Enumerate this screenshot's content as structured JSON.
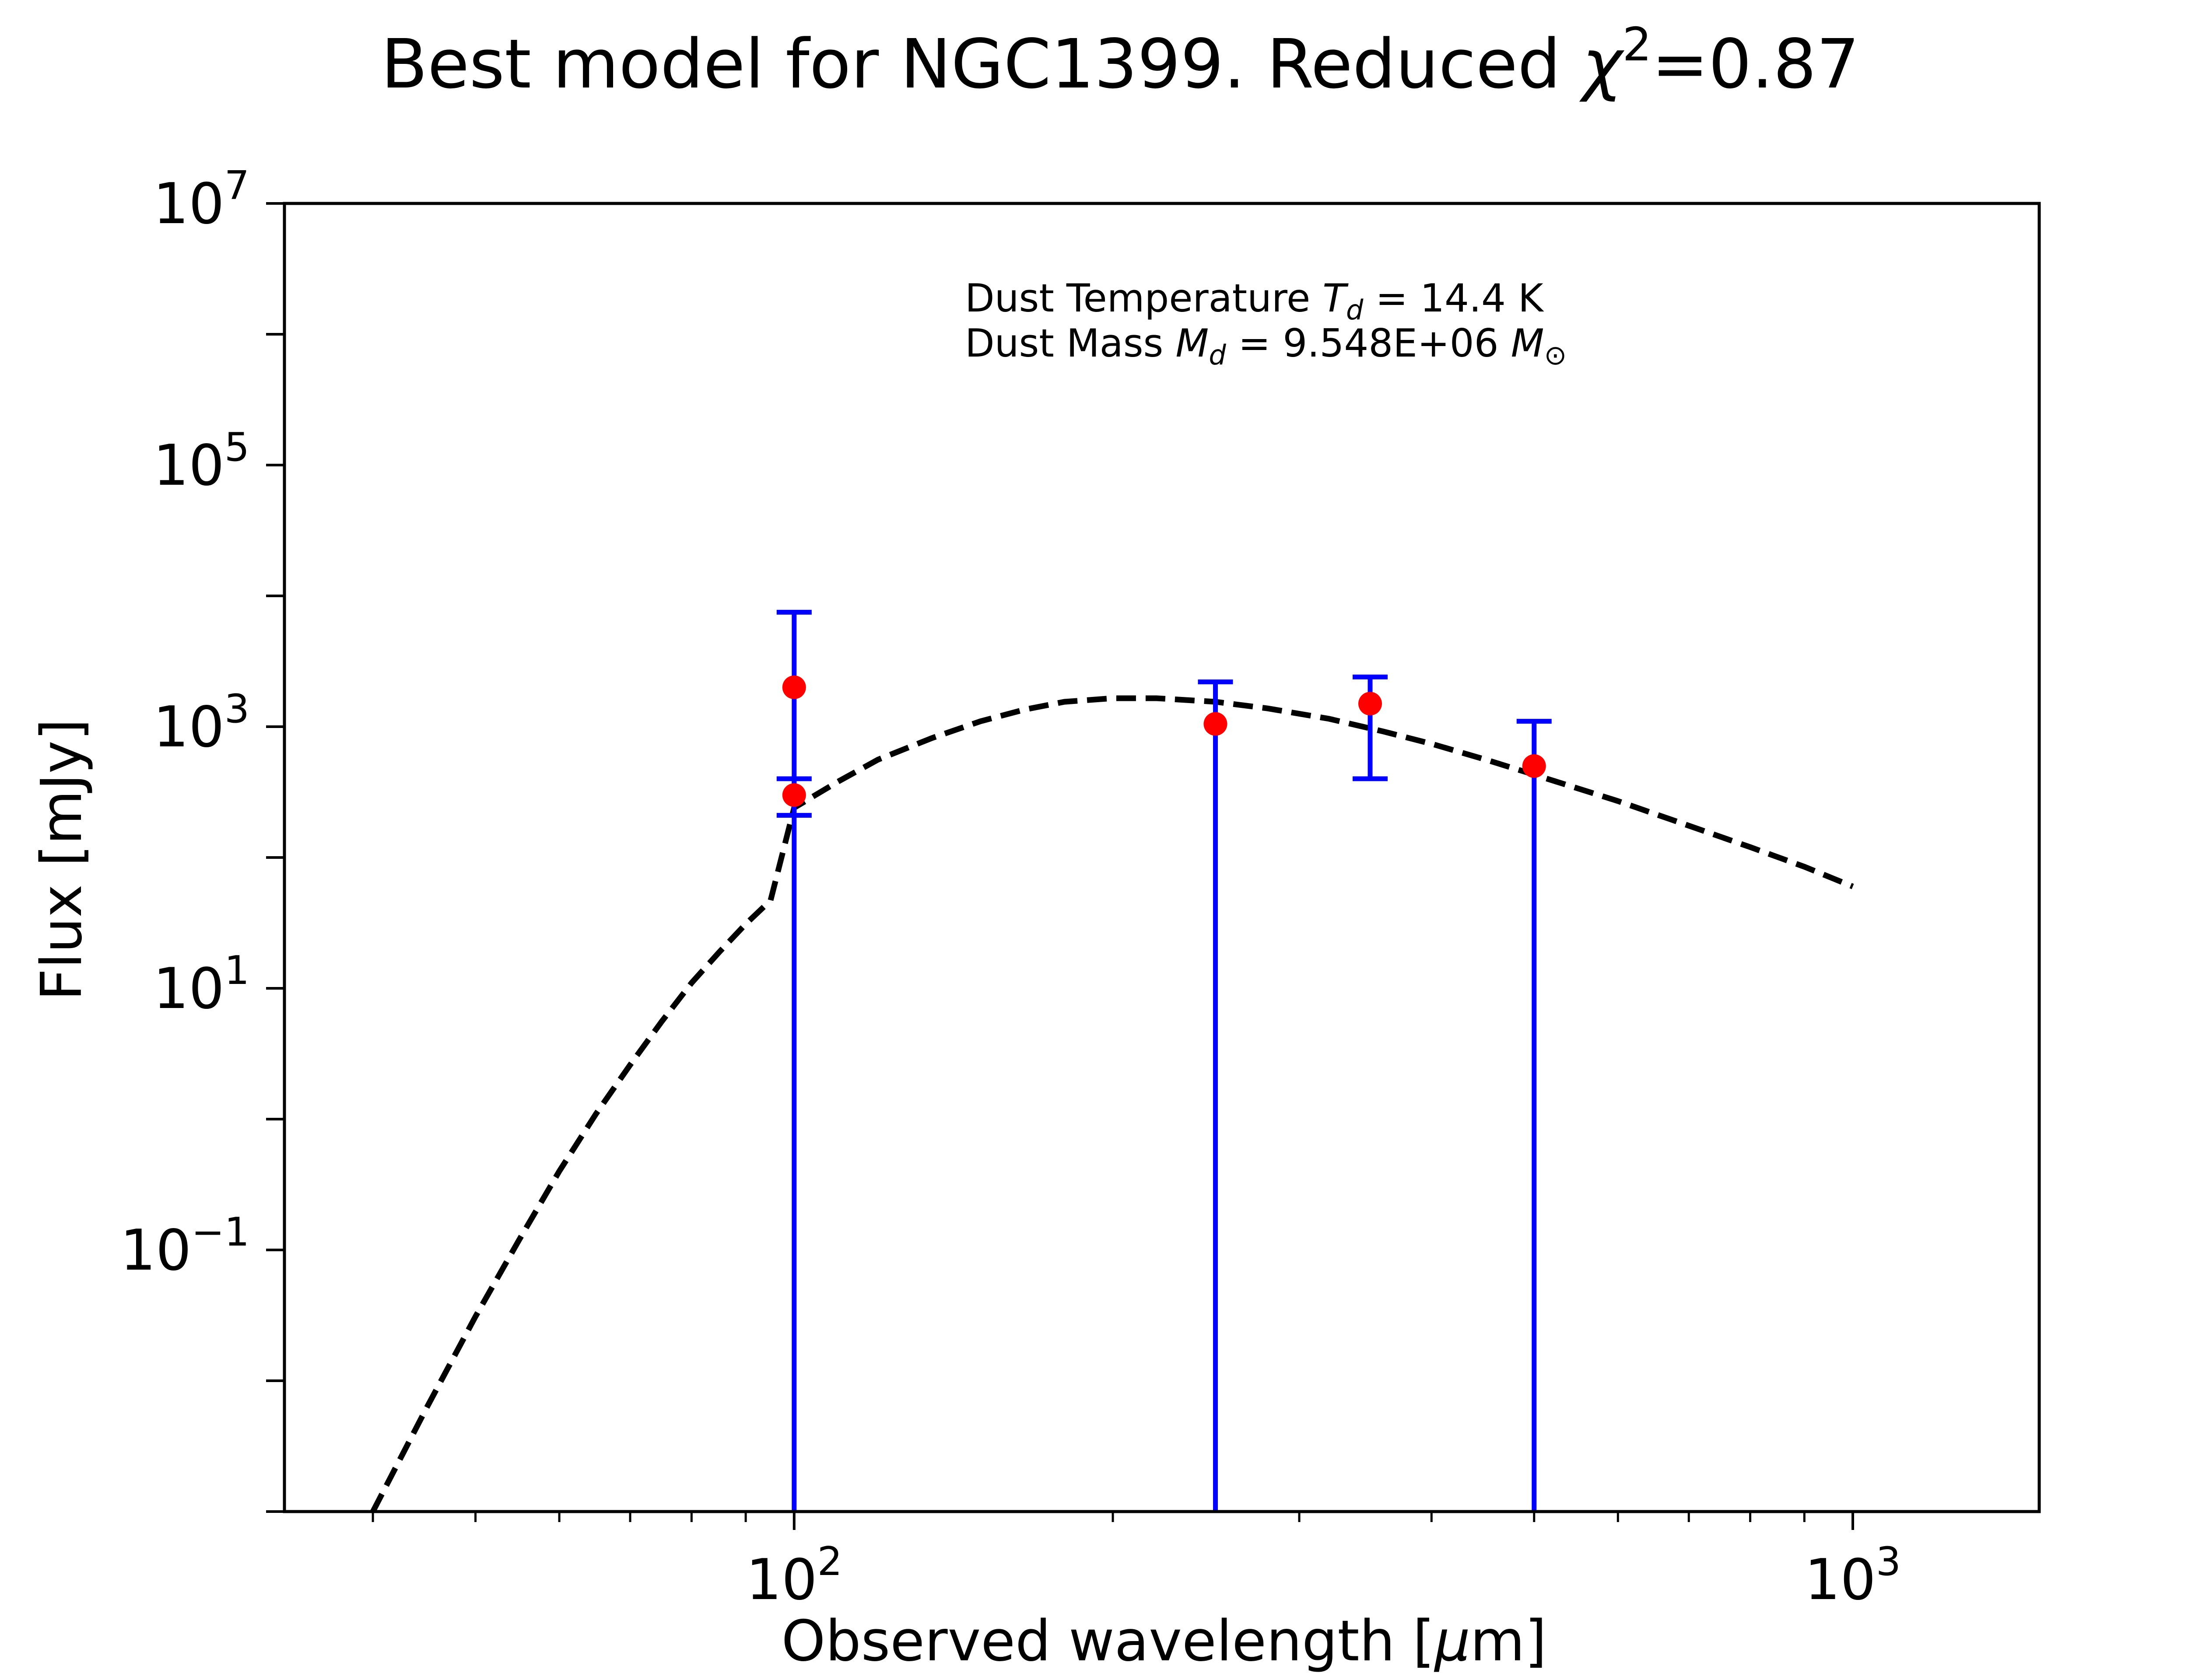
{
  "chart_data": {
    "type": "scatter",
    "title_prefix": "Best model for NGC1399. Reduced ",
    "title_chi": "χ",
    "title_exp": "2",
    "title_suffix": "=0.87",
    "xlabel_prefix": "Observed wavelength [",
    "xlabel_mu": "μ",
    "xlabel_suffix": "m]",
    "ylabel": "Flux [mJy]",
    "x_scale": "log",
    "y_scale": "log",
    "xlim": [
      33,
      1500
    ],
    "ylim": [
      0.001,
      10000000
    ],
    "grid": false,
    "annotation": {
      "line1_prefix": "Dust Temperature ",
      "line1_var": "T",
      "line1_sub": "d",
      "line1_suffix": " = 14.4 K",
      "line2_prefix": "Dust Mass ",
      "line2_var": "M",
      "line2_sub": "d",
      "line2_value": " = 9.548E+06 ",
      "line2_unit": "M",
      "line2_unit_sub": "⊙"
    },
    "x_ticks": [
      {
        "value": 100,
        "base": "10",
        "exp": "2"
      },
      {
        "value": 1000,
        "base": "10",
        "exp": "3"
      }
    ],
    "y_ticks": [
      {
        "value": 0.1,
        "base": "10",
        "exp": "−1"
      },
      {
        "value": 10,
        "base": "10",
        "exp": "1"
      },
      {
        "value": 1000,
        "base": "10",
        "exp": "3"
      },
      {
        "value": 100000,
        "base": "10",
        "exp": "5"
      },
      {
        "value": 10000000,
        "base": "10",
        "exp": "7"
      }
    ],
    "data_points": [
      {
        "x": 100,
        "y": 2000,
        "y_err_low": 0.001,
        "y_err_high": 7500
      },
      {
        "x": 100,
        "y": 300,
        "y_err_low": 210,
        "y_err_high": 400
      },
      {
        "x": 250,
        "y": 1050,
        "y_err_low": 0.001,
        "y_err_high": 2200
      },
      {
        "x": 350,
        "y": 1500,
        "y_err_low": 400,
        "y_err_high": 2400
      },
      {
        "x": 500,
        "y": 500,
        "y_err_low": 0.001,
        "y_err_high": 1100
      }
    ],
    "model_curve": {
      "x": [
        40,
        45,
        50,
        55,
        60,
        65,
        70,
        75,
        80,
        85,
        90,
        95,
        100,
        110,
        120,
        135,
        150,
        165,
        180,
        200,
        220,
        250,
        280,
        320,
        360,
        400,
        450,
        500,
        600,
        700,
        800,
        900,
        1000
      ],
      "y": [
        0.001,
        0.0063,
        0.031,
        0.12,
        0.4,
        1.1,
        2.6,
        5.6,
        11,
        19,
        31,
        47,
        240,
        380,
        560,
        820,
        1100,
        1350,
        1550,
        1650,
        1650,
        1550,
        1380,
        1150,
        920,
        740,
        560,
        430,
        270,
        175,
        120,
        85,
        60
      ]
    },
    "colors": {
      "points": "#ff0000",
      "errorbars": "#0000ff",
      "model": "#000000",
      "axes": "#000000"
    }
  }
}
